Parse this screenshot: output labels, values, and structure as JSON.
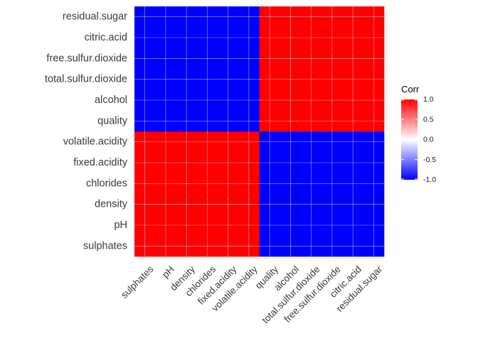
{
  "chart_data": {
    "type": "heatmap",
    "title": "",
    "xlabel": "",
    "ylabel": "",
    "x_categories": [
      "sulphates",
      "pH",
      "density",
      "chlorides",
      "fixed.acidity",
      "volatile.acidity",
      "quality",
      "alcohol",
      "total.sulfur.dioxide",
      "free.sulfur.dioxide",
      "citric.acid",
      "residual.sugar"
    ],
    "y_categories": [
      "sulphates",
      "pH",
      "density",
      "chlorides",
      "fixed.acidity",
      "volatile.acidity",
      "quality",
      "alcohol",
      "total.sulfur.dioxide",
      "free.sulfur.dioxide",
      "citric.acid",
      "residual.sugar"
    ],
    "values": [
      [
        1,
        1,
        1,
        1,
        1,
        1,
        -1,
        -1,
        -1,
        -1,
        -1,
        -1
      ],
      [
        1,
        1,
        1,
        1,
        1,
        1,
        -1,
        -1,
        -1,
        -1,
        -1,
        -1
      ],
      [
        1,
        1,
        1,
        1,
        1,
        1,
        -1,
        -1,
        -1,
        -1,
        -1,
        -1
      ],
      [
        1,
        1,
        1,
        1,
        1,
        1,
        -1,
        -1,
        -1,
        -1,
        -1,
        -1
      ],
      [
        1,
        1,
        1,
        1,
        1,
        1,
        -1,
        -1,
        -1,
        -1,
        -1,
        -1
      ],
      [
        1,
        1,
        1,
        1,
        1,
        1,
        -1,
        -1,
        -1,
        -1,
        -1,
        -1
      ],
      [
        -1,
        -1,
        -1,
        -1,
        -1,
        -1,
        1,
        1,
        1,
        1,
        1,
        1
      ],
      [
        -1,
        -1,
        -1,
        -1,
        -1,
        -1,
        1,
        1,
        1,
        1,
        1,
        1
      ],
      [
        -1,
        -1,
        -1,
        -1,
        -1,
        -1,
        1,
        1,
        1,
        1,
        1,
        1
      ],
      [
        -1,
        -1,
        -1,
        -1,
        -1,
        -1,
        1,
        1,
        1,
        1,
        1,
        1
      ],
      [
        -1,
        -1,
        -1,
        -1,
        -1,
        -1,
        1,
        1,
        1,
        1,
        1,
        1
      ],
      [
        -1,
        -1,
        -1,
        -1,
        -1,
        -1,
        1,
        1,
        1,
        1,
        1,
        1
      ]
    ],
    "value_range": [
      -1,
      1
    ],
    "legend": {
      "title": "Corr",
      "ticks": [
        1.0,
        0.5,
        0.0,
        -0.5,
        -1.0
      ],
      "tick_labels": [
        "1.0",
        "0.5",
        "0.0",
        "-0.5",
        "-1.0"
      ],
      "placement": "right"
    },
    "colors": {
      "low": "#0000ff",
      "mid": "#ffffff",
      "high": "#ff0000",
      "grid": "#dcdcdc"
    },
    "grid": true
  }
}
